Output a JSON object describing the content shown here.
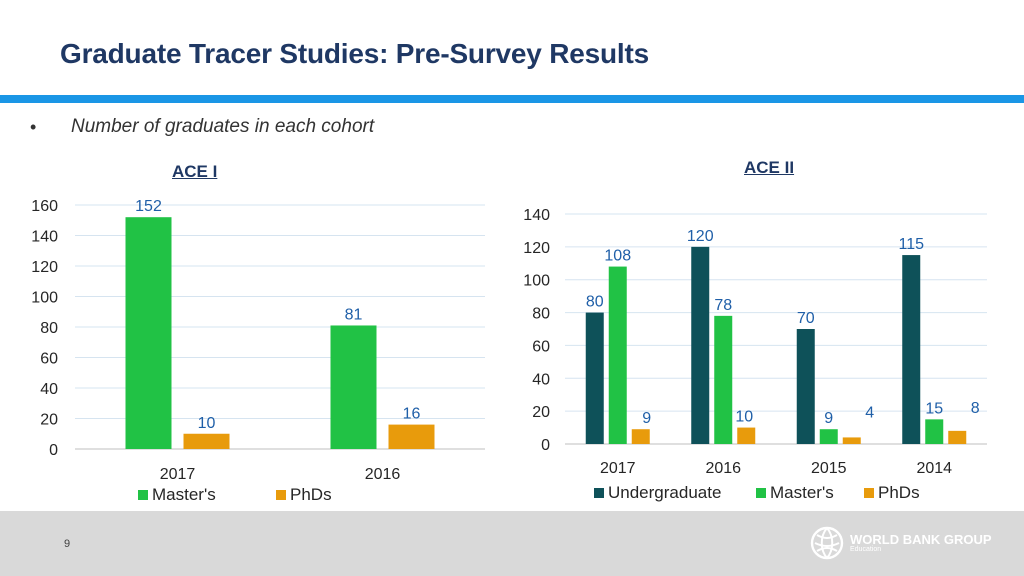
{
  "slide": {
    "title": "Graduate Tracer Studies: Pre-Survey Results",
    "bullet_mark": "•",
    "bullet": "Number of graduates in each cohort",
    "page_number": "9"
  },
  "logo": {
    "name": "WORLD BANK GROUP",
    "sub": "Education",
    "icon": "globe-icon"
  },
  "colors": {
    "Undergraduate": "#0e5159",
    "Master's": "#21c245",
    "PhDs": "#e89b0c",
    "accent": "#1a96e6"
  },
  "chart_data": [
    {
      "id": "ace1",
      "type": "bar",
      "title": "ACE I",
      "categories": [
        "2017",
        "2016"
      ],
      "series": [
        {
          "name": "Master's",
          "values": [
            152,
            81
          ]
        },
        {
          "name": "PhDs",
          "values": [
            10,
            16
          ]
        }
      ],
      "ylim": [
        0,
        160
      ],
      "yticks": [
        0,
        20,
        40,
        60,
        80,
        100,
        120,
        140,
        160
      ],
      "grid": true,
      "legend": "bottom",
      "data_labels": true
    },
    {
      "id": "ace2",
      "type": "bar",
      "title": "ACE II",
      "categories": [
        "2017",
        "2016",
        "2015",
        "2014"
      ],
      "series": [
        {
          "name": "Undergraduate",
          "values": [
            80,
            120,
            70,
            115
          ]
        },
        {
          "name": "Master's",
          "values": [
            108,
            78,
            9,
            15
          ]
        },
        {
          "name": "PhDs",
          "values": [
            9,
            10,
            4,
            8
          ]
        }
      ],
      "ylim": [
        0,
        140
      ],
      "yticks": [
        0,
        20,
        40,
        60,
        80,
        100,
        120,
        140
      ],
      "grid": true,
      "legend": "bottom",
      "data_labels": true
    }
  ]
}
